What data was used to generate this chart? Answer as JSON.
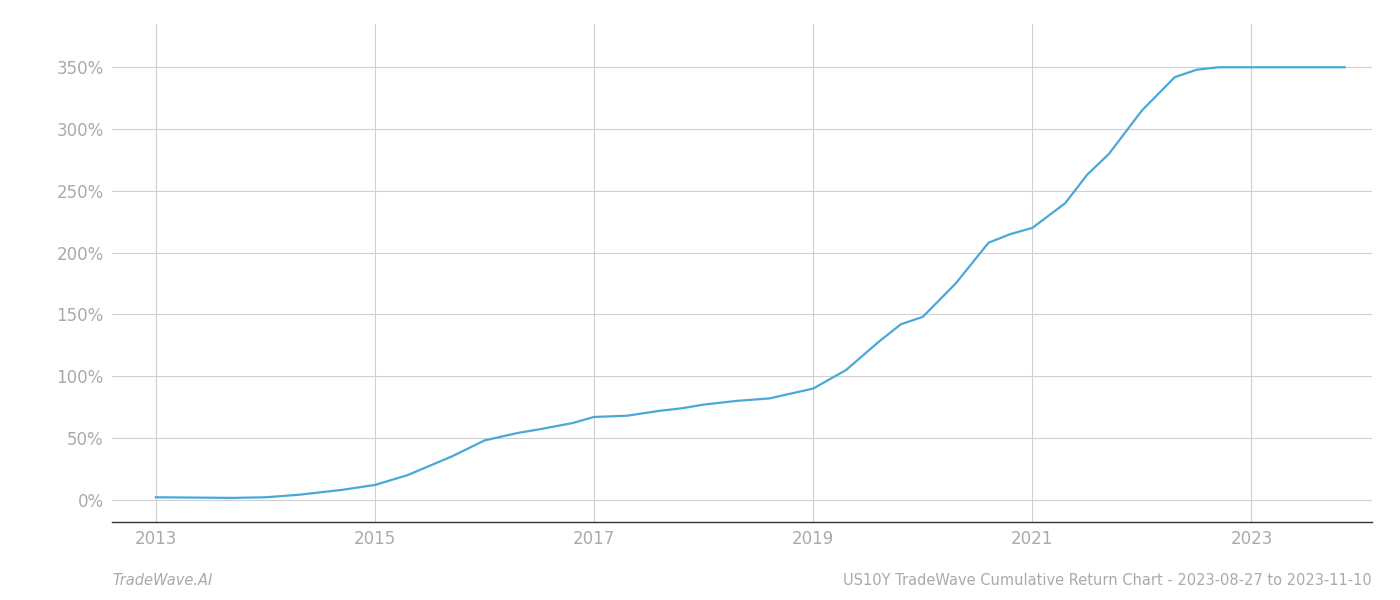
{
  "title": "",
  "footer_left": "TradeWave.AI",
  "footer_right": "US10Y TradeWave Cumulative Return Chart - 2023-08-27 to 2023-11-10",
  "line_color": "#4aa8d8",
  "background_color": "#ffffff",
  "grid_color": "#d0d0d0",
  "x_years": [
    2013.0,
    2013.3,
    2013.7,
    2014.0,
    2014.3,
    2014.7,
    2015.0,
    2015.3,
    2015.7,
    2016.0,
    2016.3,
    2016.5,
    2016.8,
    2017.0,
    2017.3,
    2017.6,
    2017.8,
    2018.0,
    2018.3,
    2018.6,
    2018.8,
    2019.0,
    2019.3,
    2019.6,
    2019.8,
    2020.0,
    2020.3,
    2020.6,
    2020.8,
    2021.0,
    2021.3,
    2021.5,
    2021.7,
    2022.0,
    2022.3,
    2022.5,
    2022.7,
    2023.0,
    2023.5,
    2023.85
  ],
  "y_values": [
    2,
    1.8,
    1.5,
    2,
    4,
    8,
    12,
    20,
    35,
    48,
    54,
    57,
    62,
    67,
    68,
    72,
    74,
    77,
    80,
    82,
    86,
    90,
    105,
    128,
    142,
    148,
    175,
    208,
    215,
    220,
    240,
    263,
    280,
    315,
    342,
    348,
    350,
    350,
    350,
    350
  ],
  "x_ticks": [
    2013,
    2015,
    2017,
    2019,
    2021,
    2023
  ],
  "y_ticks": [
    0,
    50,
    100,
    150,
    200,
    250,
    300,
    350
  ],
  "xlim": [
    2012.6,
    2024.1
  ],
  "ylim": [
    -18,
    385
  ],
  "line_width": 1.6,
  "tick_label_color": "#aaaaaa",
  "tick_label_fontsize": 12,
  "footer_fontsize": 10.5,
  "footer_left_italic": true
}
